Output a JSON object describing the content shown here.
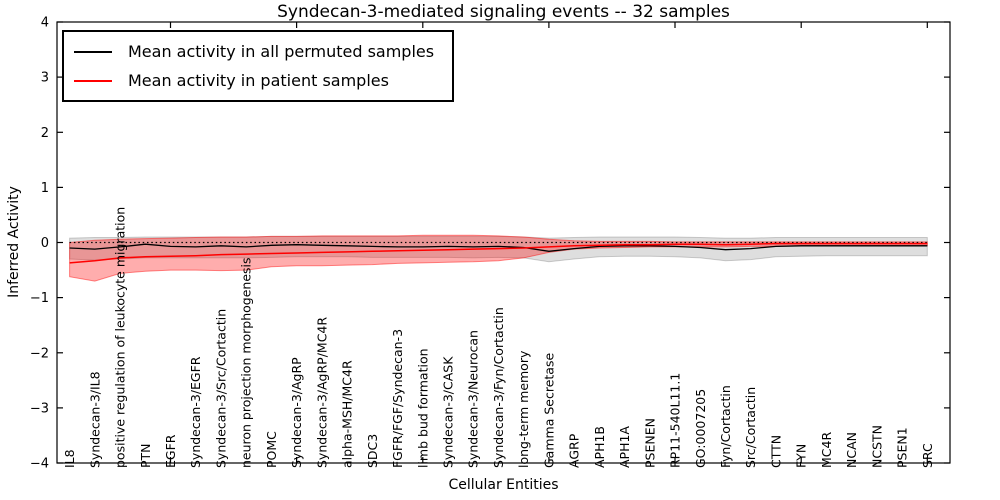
{
  "figure": {
    "background": "#ffffff"
  },
  "legend": {
    "items": [
      {
        "label": "Mean activity in all permuted samples",
        "color": "#000000"
      },
      {
        "label": "Mean activity in patient samples",
        "color": "#ff0000"
      }
    ]
  },
  "chart_data": {
    "type": "line",
    "title": "Syndecan-3-mediated signaling events -- 32 samples",
    "xlabel": "Cellular Entities",
    "ylabel": "Inferred Activity",
    "ylim": [
      -4,
      4
    ],
    "xlim_units": 35.4,
    "grid": false,
    "legend_position": "upper-left",
    "zero_line": {
      "style": "dotted",
      "color": "#000000",
      "value": 0
    },
    "yticks": [
      4,
      3,
      2,
      1,
      0,
      -1,
      -2,
      -3,
      -4
    ],
    "ytick_labels": [
      "4",
      "3",
      "2",
      "1",
      "0",
      "−1",
      "−2",
      "−3",
      "−4"
    ],
    "xtick_indices": [
      4,
      9,
      14,
      19,
      24,
      29,
      34
    ],
    "categories": [
      "IL8",
      "Syndecan-3/IL8",
      "positive regulation of leukocyte migration",
      "PTN",
      "EGFR",
      "Syndecan-3/EGFR",
      "Syndecan-3/Src/Cortactin",
      "neuron projection morphogenesis",
      "POMC",
      "Syndecan-3/AgRP",
      "Syndecan-3/AgRP/MC4R",
      "alpha-MSH/MC4R",
      "SDC3",
      "FGFR/FGF/Syndecan-3",
      "limb bud formation",
      "Syndecan-3/CASK",
      "Syndecan-3/Neurocan",
      "Syndecan-3/Fyn/Cortactin",
      "long-term memory",
      "Gamma Secretase",
      "AGRP",
      "APH1B",
      "APH1A",
      "PSENEN",
      "RP11-540L11.1",
      "GO:0007205",
      "Fyn/Cortactin",
      "Src/Cortactin",
      "CTTN",
      "FYN",
      "MC4R",
      "NCAN",
      "NCSTN",
      "PSEN1",
      "SRC"
    ],
    "series": [
      {
        "name": "Mean activity in all permuted samples",
        "color": "#000000",
        "line_width": 1.3,
        "band_fill": "rgba(0,0,0,0.13)",
        "band_edge": "rgba(0,0,0,0.18)",
        "values": [
          -0.1,
          -0.12,
          -0.08,
          -0.03,
          -0.07,
          -0.08,
          -0.06,
          -0.08,
          -0.05,
          -0.04,
          -0.05,
          -0.06,
          -0.07,
          -0.08,
          -0.08,
          -0.07,
          -0.08,
          -0.07,
          -0.09,
          -0.16,
          -0.11,
          -0.07,
          -0.06,
          -0.06,
          -0.07,
          -0.09,
          -0.13,
          -0.11,
          -0.07,
          -0.06,
          -0.06,
          -0.06,
          -0.06,
          -0.06,
          -0.06
        ],
        "band_upper": [
          0.08,
          0.09,
          0.09,
          0.1,
          0.1,
          0.1,
          0.1,
          0.1,
          0.11,
          0.11,
          0.11,
          0.11,
          0.11,
          0.11,
          0.11,
          0.11,
          0.11,
          0.11,
          0.1,
          0.08,
          0.09,
          0.1,
          0.1,
          0.1,
          0.1,
          0.09,
          0.08,
          0.08,
          0.09,
          0.09,
          0.09,
          0.09,
          0.09,
          0.09,
          0.09
        ],
        "band_lower": [
          -0.3,
          -0.32,
          -0.3,
          -0.28,
          -0.28,
          -0.28,
          -0.28,
          -0.28,
          -0.27,
          -0.26,
          -0.26,
          -0.26,
          -0.27,
          -0.27,
          -0.27,
          -0.27,
          -0.28,
          -0.27,
          -0.28,
          -0.35,
          -0.3,
          -0.26,
          -0.25,
          -0.25,
          -0.26,
          -0.28,
          -0.33,
          -0.31,
          -0.26,
          -0.25,
          -0.24,
          -0.24,
          -0.24,
          -0.24,
          -0.24
        ]
      },
      {
        "name": "Mean activity in patient samples",
        "color": "#ff0000",
        "line_width": 1.5,
        "band_fill": "rgba(255,0,0,0.32)",
        "band_edge": "rgba(255,0,0,0.45)",
        "values": [
          -0.37,
          -0.33,
          -0.28,
          -0.26,
          -0.25,
          -0.24,
          -0.22,
          -0.21,
          -0.2,
          -0.19,
          -0.18,
          -0.17,
          -0.16,
          -0.15,
          -0.14,
          -0.13,
          -0.12,
          -0.11,
          -0.1,
          -0.08,
          -0.06,
          -0.05,
          -0.04,
          -0.04,
          -0.03,
          -0.03,
          -0.04,
          -0.03,
          -0.02,
          -0.02,
          -0.02,
          -0.02,
          -0.02,
          -0.02,
          -0.02
        ],
        "band_upper": [
          0.0,
          0.04,
          0.06,
          0.07,
          0.08,
          0.09,
          0.1,
          0.1,
          0.11,
          0.11,
          0.12,
          0.12,
          0.12,
          0.12,
          0.13,
          0.13,
          0.13,
          0.12,
          0.1,
          0.06,
          0.03,
          0.02,
          0.02,
          0.02,
          0.01,
          0.01,
          0.01,
          0.01,
          0.01,
          0.01,
          0.01,
          0.01,
          0.01,
          0.01,
          0.01
        ],
        "band_lower": [
          -0.62,
          -0.7,
          -0.56,
          -0.52,
          -0.5,
          -0.5,
          -0.51,
          -0.5,
          -0.44,
          -0.42,
          -0.42,
          -0.41,
          -0.4,
          -0.38,
          -0.37,
          -0.36,
          -0.35,
          -0.33,
          -0.28,
          -0.18,
          -0.12,
          -0.1,
          -0.09,
          -0.08,
          -0.08,
          -0.08,
          -0.08,
          -0.07,
          -0.07,
          -0.06,
          -0.06,
          -0.06,
          -0.06,
          -0.06,
          -0.06
        ]
      }
    ]
  }
}
